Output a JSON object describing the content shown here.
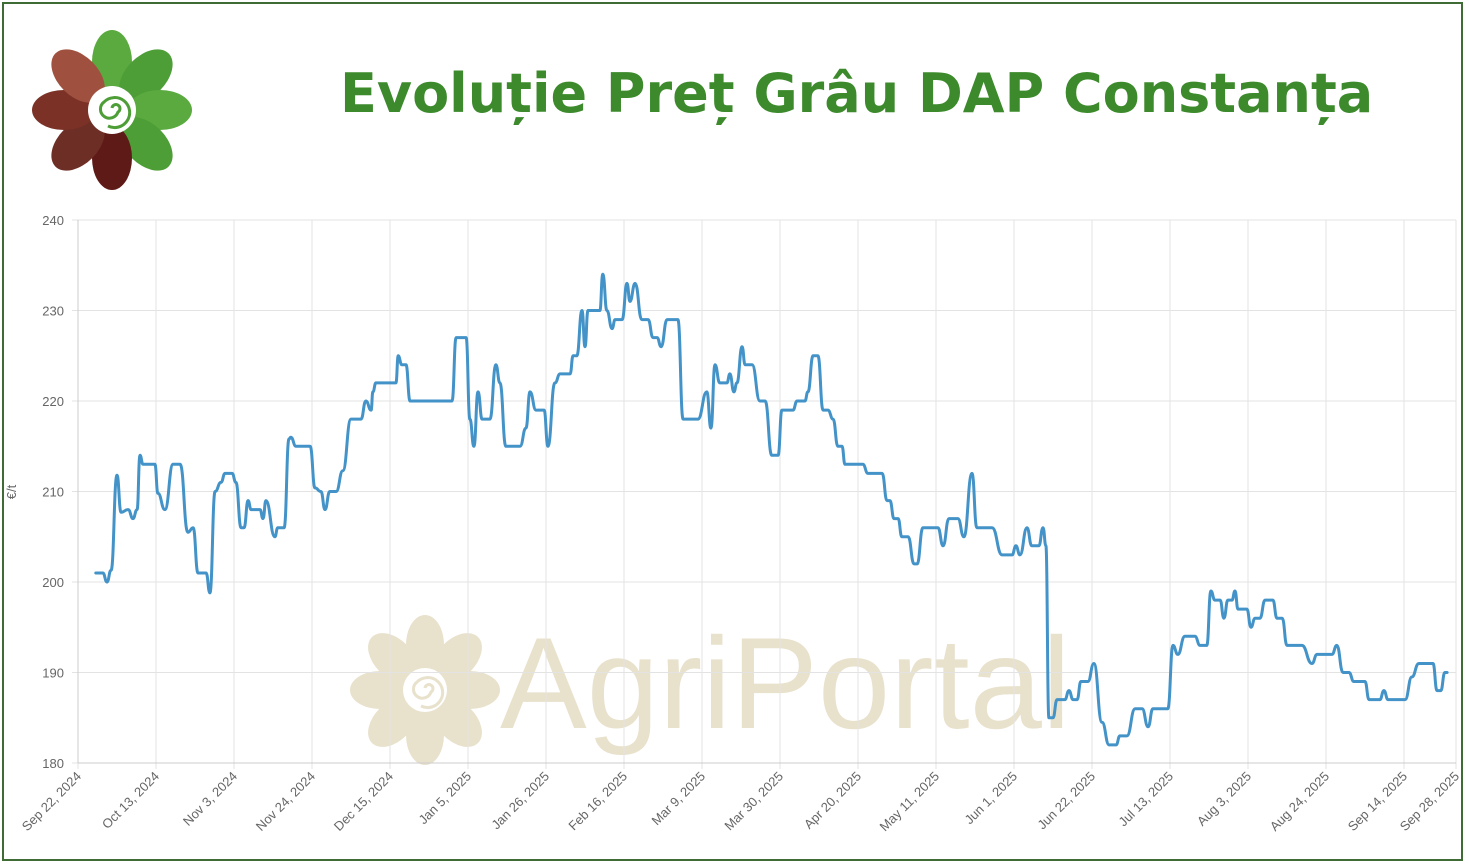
{
  "title": "Evoluție Preț Grâu DAP Constanța",
  "logo_text": "AgriPortal",
  "colors": {
    "line": "#4393c8",
    "title": "#3c8a2c",
    "grid": "#e3e3e3",
    "watermark": "#e8e1cc"
  },
  "chart_data": {
    "type": "line",
    "title": "Evoluție Preț Grâu DAP Constanța",
    "xlabel": "",
    "ylabel": "€/t",
    "ylim": [
      180,
      240
    ],
    "yticks": [
      "180",
      "190",
      "200",
      "210",
      "220",
      "230",
      "240"
    ],
    "x_unit": "days since Sep 22, 2024",
    "xlim": [
      0,
      371
    ],
    "xticks": [
      {
        "day": 0,
        "label": "Sep 22, 2024"
      },
      {
        "day": 21,
        "label": "Oct 13, 2024"
      },
      {
        "day": 42,
        "label": "Nov 3, 2024"
      },
      {
        "day": 63,
        "label": "Nov 24, 2024"
      },
      {
        "day": 84,
        "label": "Dec 15, 2024"
      },
      {
        "day": 105,
        "label": "Jan 5, 2025"
      },
      {
        "day": 126,
        "label": "Jan 26, 2025"
      },
      {
        "day": 147,
        "label": "Feb 16, 2025"
      },
      {
        "day": 168,
        "label": "Mar 9, 2025"
      },
      {
        "day": 189,
        "label": "Mar 30, 2025"
      },
      {
        "day": 210,
        "label": "Apr 20, 2025"
      },
      {
        "day": 231,
        "label": "May 11, 2025"
      },
      {
        "day": 252,
        "label": "Jun 1, 2025"
      },
      {
        "day": 273,
        "label": "Jun 22, 2025"
      },
      {
        "day": 294,
        "label": "Jul 13, 2025"
      },
      {
        "day": 315,
        "label": "Aug 3, 2025"
      },
      {
        "day": 336,
        "label": "Aug 24, 2025"
      },
      {
        "day": 357,
        "label": "Sep 14, 2025"
      },
      {
        "day": 371,
        "label": "Sep 28, 2025"
      }
    ],
    "grid": true,
    "legend": "none",
    "series": [
      {
        "name": "Preț Grâu DAP Constanța",
        "points": [
          [
            4.8,
            201
          ],
          [
            6.7,
            201
          ],
          [
            7.8,
            200
          ],
          [
            8.9,
            201.3
          ],
          [
            10.5,
            211.8
          ],
          [
            11.6,
            207.7
          ],
          [
            13.5,
            208
          ],
          [
            14.8,
            207
          ],
          [
            15.9,
            208
          ],
          [
            16.7,
            214
          ],
          [
            17.5,
            213
          ],
          [
            20.7,
            213
          ],
          [
            21.5,
            209.8
          ],
          [
            23.4,
            208
          ],
          [
            25.6,
            213
          ],
          [
            27.5,
            213
          ],
          [
            29.6,
            205.5
          ],
          [
            31.0,
            206
          ],
          [
            32.3,
            201
          ],
          [
            34.5,
            201
          ],
          [
            35.5,
            198.8
          ],
          [
            36.9,
            210
          ],
          [
            38.5,
            211
          ],
          [
            39.6,
            212
          ],
          [
            41.5,
            212
          ],
          [
            42.5,
            211
          ],
          [
            43.9,
            206
          ],
          [
            44.7,
            206
          ],
          [
            45.8,
            209
          ],
          [
            46.6,
            208
          ],
          [
            49.0,
            208
          ],
          [
            49.8,
            207
          ],
          [
            50.6,
            209
          ],
          [
            53.0,
            205
          ],
          [
            53.8,
            206
          ],
          [
            55.5,
            206
          ],
          [
            56.8,
            215.8
          ],
          [
            57.3,
            216
          ],
          [
            58.7,
            215
          ],
          [
            62.5,
            215
          ],
          [
            63.8,
            210.4
          ],
          [
            65.4,
            210
          ],
          [
            66.5,
            208
          ],
          [
            67.8,
            210
          ],
          [
            69.5,
            210
          ],
          [
            71.3,
            212.3
          ],
          [
            73.5,
            218
          ],
          [
            76.2,
            218
          ],
          [
            77.5,
            220
          ],
          [
            78.9,
            219
          ],
          [
            79.4,
            221
          ],
          [
            80.2,
            222
          ],
          [
            85.6,
            222
          ],
          [
            86.2,
            225
          ],
          [
            87.2,
            224
          ],
          [
            88.3,
            224
          ],
          [
            89.4,
            220
          ],
          [
            100.7,
            220
          ],
          [
            101.8,
            227
          ],
          [
            104.5,
            227
          ],
          [
            105.5,
            218
          ],
          [
            106.6,
            215
          ],
          [
            107.7,
            221
          ],
          [
            108.8,
            218
          ],
          [
            110.9,
            218
          ],
          [
            112.5,
            224
          ],
          [
            113.6,
            222
          ],
          [
            115.2,
            215
          ],
          [
            119.0,
            215
          ],
          [
            120.6,
            217
          ],
          [
            121.7,
            221
          ],
          [
            123.3,
            219
          ],
          [
            125.5,
            219
          ],
          [
            126.5,
            215
          ],
          [
            128.4,
            222
          ],
          [
            129.8,
            223
          ],
          [
            132.5,
            223
          ],
          [
            133.3,
            225
          ],
          [
            134.3,
            225
          ],
          [
            135.7,
            230
          ],
          [
            136.5,
            226
          ],
          [
            137.3,
            230
          ],
          [
            140.5,
            230
          ],
          [
            141.3,
            234
          ],
          [
            142.4,
            230
          ],
          [
            143.8,
            228
          ],
          [
            144.6,
            229
          ],
          [
            146.5,
            229
          ],
          [
            147.8,
            233
          ],
          [
            148.6,
            231
          ],
          [
            150.0,
            233
          ],
          [
            151.8,
            229
          ],
          [
            153.5,
            229
          ],
          [
            154.8,
            227
          ],
          [
            155.9,
            227
          ],
          [
            157.0,
            226
          ],
          [
            158.6,
            229
          ],
          [
            161.5,
            229
          ],
          [
            162.9,
            218
          ],
          [
            164.0,
            218
          ],
          [
            166.9,
            218
          ],
          [
            169.3,
            221
          ],
          [
            170.4,
            217
          ],
          [
            171.5,
            224
          ],
          [
            172.8,
            222
          ],
          [
            174.7,
            222
          ],
          [
            175.5,
            223
          ],
          [
            176.6,
            221
          ],
          [
            177.4,
            222
          ],
          [
            178.8,
            226
          ],
          [
            179.6,
            224
          ],
          [
            181.5,
            224
          ],
          [
            183.6,
            220
          ],
          [
            185.0,
            220
          ],
          [
            186.8,
            214
          ],
          [
            188.5,
            214
          ],
          [
            189.5,
            219
          ],
          [
            192.5,
            219
          ],
          [
            193.6,
            220
          ],
          [
            195.7,
            220
          ],
          [
            196.5,
            221
          ],
          [
            197.9,
            225
          ],
          [
            199.2,
            225
          ],
          [
            200.6,
            219
          ],
          [
            201.9,
            219
          ],
          [
            203.3,
            218
          ],
          [
            204.6,
            215
          ],
          [
            205.7,
            215
          ],
          [
            206.5,
            213
          ],
          [
            211.3,
            213
          ],
          [
            212.7,
            212
          ],
          [
            216.5,
            212
          ],
          [
            217.8,
            209
          ],
          [
            218.6,
            209
          ],
          [
            219.7,
            207
          ],
          [
            220.8,
            207
          ],
          [
            221.8,
            205
          ],
          [
            223.5,
            205
          ],
          [
            225.1,
            202
          ],
          [
            225.9,
            202
          ],
          [
            227.5,
            206
          ],
          [
            231.5,
            206
          ],
          [
            232.9,
            204
          ],
          [
            234.5,
            207
          ],
          [
            236.9,
            207
          ],
          [
            238.5,
            205
          ],
          [
            240.7,
            212
          ],
          [
            242.0,
            206
          ],
          [
            246.1,
            206
          ],
          [
            248.8,
            203
          ],
          [
            251.5,
            203
          ],
          [
            252.5,
            204
          ],
          [
            253.6,
            203
          ],
          [
            255.5,
            206
          ],
          [
            256.8,
            204
          ],
          [
            258.7,
            204
          ],
          [
            259.8,
            206
          ],
          [
            260.6,
            204
          ],
          [
            261.4,
            185
          ],
          [
            262.5,
            185
          ],
          [
            263.6,
            187
          ],
          [
            265.7,
            187
          ],
          [
            266.8,
            188
          ],
          [
            267.9,
            187
          ],
          [
            269.0,
            187
          ],
          [
            270.0,
            189
          ],
          [
            271.9,
            189
          ],
          [
            273.5,
            191
          ],
          [
            275.7,
            184.5
          ],
          [
            277.6,
            182
          ],
          [
            279.5,
            182
          ],
          [
            280.5,
            183
          ],
          [
            282.4,
            183
          ],
          [
            284.6,
            186
          ],
          [
            286.5,
            186
          ],
          [
            288.1,
            184
          ],
          [
            289.4,
            186
          ],
          [
            293.4,
            186
          ],
          [
            294.8,
            193
          ],
          [
            296.1,
            192
          ],
          [
            298.0,
            194
          ],
          [
            300.7,
            194
          ],
          [
            302.1,
            193
          ],
          [
            303.9,
            193
          ],
          [
            305.0,
            199
          ],
          [
            306.1,
            198
          ],
          [
            307.5,
            198
          ],
          [
            308.5,
            196
          ],
          [
            309.6,
            198
          ],
          [
            310.7,
            198
          ],
          [
            311.5,
            199
          ],
          [
            312.3,
            197
          ],
          [
            314.7,
            197
          ],
          [
            315.8,
            195
          ],
          [
            316.9,
            196
          ],
          [
            318.2,
            196
          ],
          [
            319.6,
            198
          ],
          [
            321.7,
            198
          ],
          [
            322.8,
            196
          ],
          [
            324.2,
            196
          ],
          [
            325.5,
            193
          ],
          [
            329.5,
            193
          ],
          [
            332.2,
            191
          ],
          [
            333.6,
            192
          ],
          [
            337.6,
            192
          ],
          [
            338.9,
            193
          ],
          [
            340.6,
            190
          ],
          [
            342.2,
            190
          ],
          [
            343.5,
            189
          ],
          [
            346.5,
            189
          ],
          [
            347.6,
            187
          ],
          [
            350.5,
            187
          ],
          [
            351.6,
            188
          ],
          [
            352.7,
            187
          ],
          [
            357.3,
            187
          ],
          [
            359.1,
            189.5
          ],
          [
            361.0,
            191
          ],
          [
            364.8,
            191
          ],
          [
            365.9,
            188
          ],
          [
            366.9,
            188
          ],
          [
            368.0,
            190
          ],
          [
            368.6,
            190
          ]
        ]
      }
    ]
  }
}
